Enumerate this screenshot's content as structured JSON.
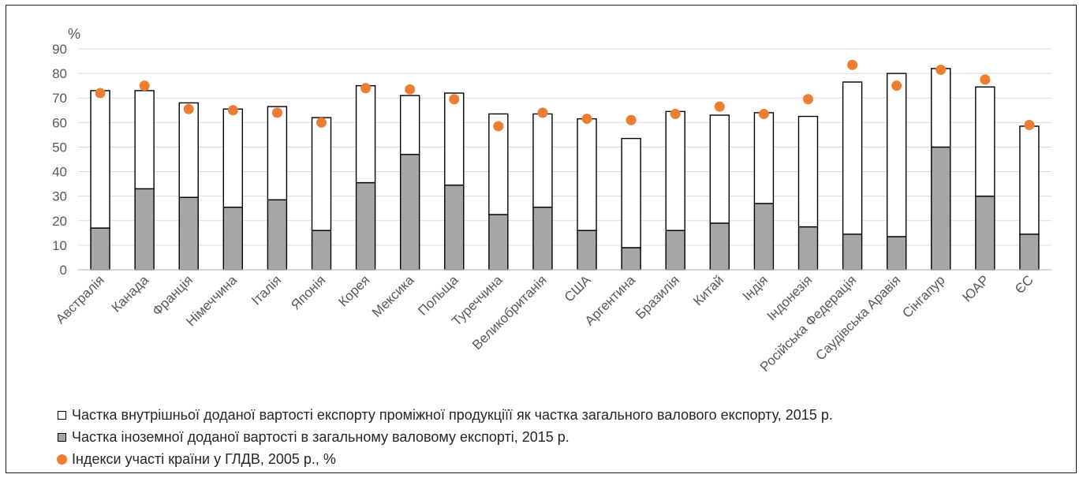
{
  "chart_data": {
    "type": "bar",
    "ylabel": "%",
    "ylim": [
      0,
      90
    ],
    "yticks": [
      0,
      10,
      20,
      30,
      40,
      50,
      60,
      70,
      80,
      90
    ],
    "grid": true,
    "legend_position": "bottom-left",
    "categories": [
      "Австралія",
      "Канада",
      "Франція",
      "Німеччина",
      "Італія",
      "Японія",
      "Корея",
      "Мексика",
      "Польща",
      "Туреччина",
      "Великобританія",
      "США",
      "Аргентина",
      "Бразилія",
      "Китай",
      "Індія",
      "Індонезія",
      "Російська Федерація",
      "Саудівська Аравія",
      "Сінгапур",
      "ЮАР",
      "ЄС"
    ],
    "series": [
      {
        "name": "Частка іноземної доданої вартості в загальному валовому експорті, 2015 р.",
        "kind": "stacked-bar-bottom",
        "color": "#a6a6a6",
        "values": [
          17,
          33,
          29.5,
          25.5,
          28.5,
          16,
          35.5,
          47,
          34.5,
          22.5,
          25.5,
          16,
          9,
          16,
          19,
          27,
          17.5,
          14.5,
          13.5,
          50,
          30,
          14.5
        ]
      },
      {
        "name": "Частка внутрішньої доданої вартості експорту проміжної продукціїї як частка загального валового експорту, 2015 р.",
        "kind": "stacked-bar-top",
        "color": "#ffffff",
        "values": [
          56,
          40,
          38.5,
          40,
          38,
          46,
          39.5,
          24,
          37.5,
          41,
          38,
          45.5,
          44.5,
          48.5,
          44,
          37,
          45,
          62,
          66.5,
          32,
          44.5,
          44
        ]
      },
      {
        "name": "Індекси участі країни у ГЛДВ, 2005 р., %",
        "kind": "dot",
        "color": "#ed7d31",
        "values": [
          72,
          75,
          65.5,
          65,
          64,
          60,
          74,
          73.5,
          69.5,
          58.5,
          64,
          61.5,
          61,
          63.5,
          66.5,
          63.5,
          69.5,
          83.5,
          75,
          81.5,
          77.5,
          59
        ]
      }
    ]
  },
  "legend": {
    "items": [
      "Частка внутрішньої доданої вартості експорту проміжної продукціїї як частка загального валового експорту, 2015 р.",
      "Частка іноземної доданої вартості в загальному валовому експорті, 2015 р.",
      "Індекси участі країни у ГЛДВ, 2005 р., %"
    ]
  }
}
